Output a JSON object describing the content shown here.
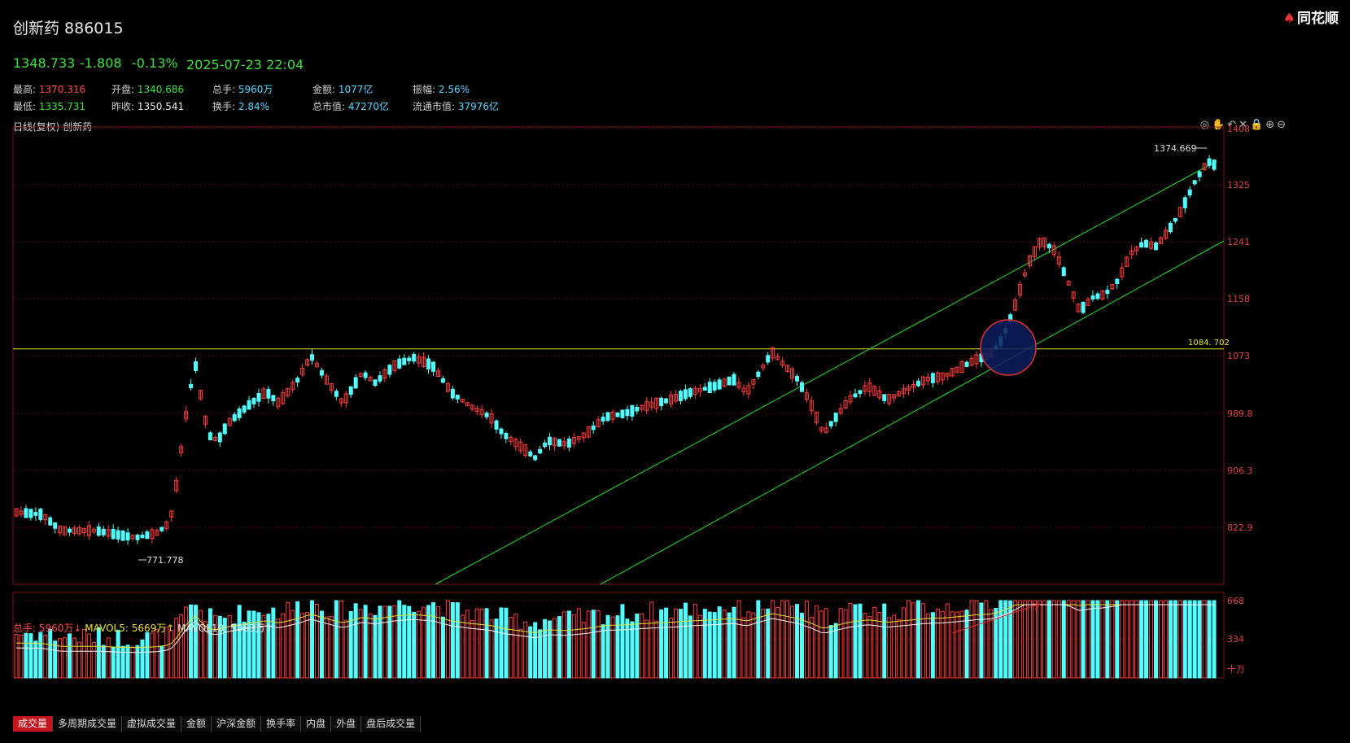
{
  "header": {
    "title": "创新药 886015",
    "logo": "同花顺"
  },
  "quote": {
    "price": "1348.733",
    "change": "-1.808",
    "change_pct": "-0.13%",
    "timestamp": "2025-07-23 22:04"
  },
  "stats": {
    "high_label": "最高:",
    "high": "1370.316",
    "open_label": "开盘:",
    "open": "1340.686",
    "vol_label": "总手:",
    "vol": "5960万",
    "amount_label": "金额:",
    "amount": "1077亿",
    "amp_label": "振幅:",
    "amp": "2.56%",
    "low_label": "最低:",
    "low": "1335.731",
    "prev_label": "昨收:",
    "prev": "1350.541",
    "turnover_label": "换手:",
    "turnover": "2.84%",
    "mcap_label": "总市值:",
    "mcap": "47270亿",
    "float_label": "流通市值:",
    "float": "37976亿"
  },
  "chart": {
    "label": "日线(复权)  创新药",
    "tools": "◎✋↶✕🔒⊕⊖",
    "price_axis": [
      "1408",
      "1325",
      "1241",
      "1158",
      "1073",
      "989.8",
      "906.3",
      "822.9"
    ],
    "hline_label": "1084. 702",
    "max_label": "1374.669",
    "min_label": "771.778"
  },
  "volume": {
    "total_label": "总手: 5960万↓",
    "ma5_label": "MAVOL5: 5669万↑",
    "ma10_label": "MAVOL10: 5063万↑",
    "axis": [
      "668",
      "334"
    ],
    "unit": "十万"
  },
  "tabs": [
    "成交量",
    "多周期成交量",
    "虚拟成交量",
    "金额",
    "沪深金额",
    "换手率",
    "内盘",
    "外盘",
    "盘后成交量"
  ],
  "colors": {
    "up": "#ff3c3c",
    "down": "#54ffff",
    "channel": "#22dd22",
    "hline": "#e6e633"
  }
}
